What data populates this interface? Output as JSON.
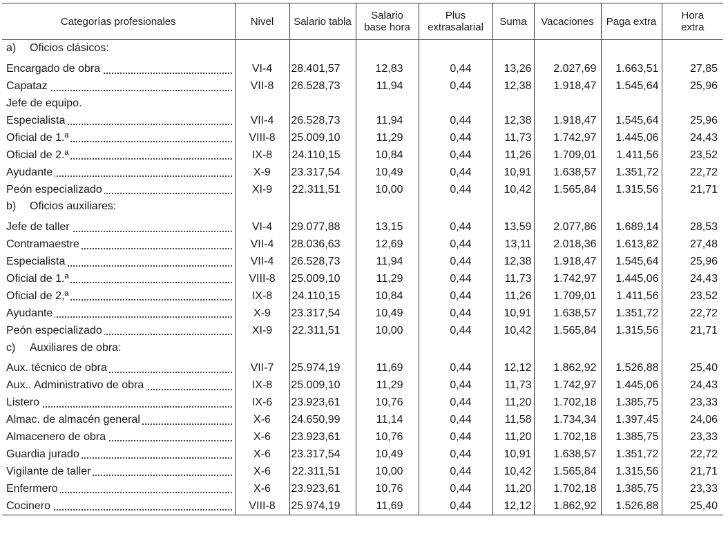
{
  "headers": {
    "categorias": "Categorías profesionales",
    "nivel": "Nivel",
    "salario_tabla": "Salario tabla",
    "salario_base_hora": [
      "Salario",
      "base hora"
    ],
    "plus": [
      "Plus",
      "extrasalarial"
    ],
    "suma": "Suma",
    "vacaciones": "Vacaciones",
    "paga_extra": "Paga extra",
    "hora_extra": [
      "Hora",
      "extra"
    ]
  },
  "sections": [
    {
      "letter": "a)",
      "title": "Oficios clásicos:",
      "rows": [
        {
          "name": "Encargado de obra",
          "dots": true,
          "nivel": "VI-4",
          "salario_tabla": "28.401,57",
          "base_hora": "12,83",
          "plus": "0,44",
          "suma": "13,26",
          "vacaciones": "2.027,69",
          "paga_extra": "1.663,51",
          "hora_extra": "27,85"
        },
        {
          "name": "Capataz",
          "dots": true,
          "nivel": "VII-8",
          "salario_tabla": "26.528,73",
          "base_hora": "11,94",
          "plus": "0,44",
          "suma": "12,38",
          "vacaciones": "1.918,47",
          "paga_extra": "1.545,64",
          "hora_extra": "25,96"
        },
        {
          "name": "Jefe de equipo.",
          "dots": false,
          "nivel": "",
          "salario_tabla": "",
          "base_hora": "",
          "plus": "",
          "suma": "",
          "vacaciones": "",
          "paga_extra": "",
          "hora_extra": ""
        },
        {
          "name": "Especialista",
          "dots": true,
          "nivel": "VII-4",
          "salario_tabla": "26.528,73",
          "base_hora": "11,94",
          "plus": "0,44",
          "suma": "12,38",
          "vacaciones": "1.918,47",
          "paga_extra": "1.545,64",
          "hora_extra": "25,96"
        },
        {
          "name": "Oficial de 1.ª",
          "dots": true,
          "nivel": "VIII-8",
          "salario_tabla": "25.009,10",
          "base_hora": "11,29",
          "plus": "0,44",
          "suma": "11,73",
          "vacaciones": "1.742,97",
          "paga_extra": "1.445,06",
          "hora_extra": "24,43"
        },
        {
          "name": "Oficial de 2.ª",
          "dots": true,
          "nivel": "IX-8",
          "salario_tabla": "24.110,15",
          "base_hora": "10,84",
          "plus": "0,44",
          "suma": "11,26",
          "vacaciones": "1.709,01",
          "paga_extra": "1.411,56",
          "hora_extra": "23,52"
        },
        {
          "name": "Ayudante",
          "dots": true,
          "nivel": "X-9",
          "salario_tabla": "23.317,54",
          "base_hora": "10,49",
          "plus": "0,44",
          "suma": "10,91",
          "vacaciones": "1.638,57",
          "paga_extra": "1.351,72",
          "hora_extra": "22,72"
        },
        {
          "name": "Peón especializado",
          "dots": true,
          "nivel": "XI-9",
          "salario_tabla": "22.311,51",
          "base_hora": "10,00",
          "plus": "0,44",
          "suma": "10,42",
          "vacaciones": "1.565,84",
          "paga_extra": "1.315,56",
          "hora_extra": "21,71"
        }
      ]
    },
    {
      "letter": "b)",
      "title": "Oficios auxiliares:",
      "rows": [
        {
          "name": "Jefe de taller",
          "dots": true,
          "nivel": "VI-4",
          "salario_tabla": "29.077,88",
          "base_hora": "13,15",
          "plus": "0,44",
          "suma": "13,59",
          "vacaciones": "2.077,86",
          "paga_extra": "1.689,14",
          "hora_extra": "28,53"
        },
        {
          "name": "Contramaestre",
          "dots": true,
          "nivel": "VII-4",
          "salario_tabla": "28.036,63",
          "base_hora": "12,69",
          "plus": "0,44",
          "suma": "13,11",
          "vacaciones": "2.018,36",
          "paga_extra": "1.613,82",
          "hora_extra": "27,48"
        },
        {
          "name": "Especialista",
          "dots": true,
          "nivel": "VII-4",
          "salario_tabla": "26.528,73",
          "base_hora": "11,94",
          "plus": "0,44",
          "suma": "12,38",
          "vacaciones": "1.918,47",
          "paga_extra": "1.545,64",
          "hora_extra": "25,96"
        },
        {
          "name": "Oficial de 1.ª",
          "dots": true,
          "nivel": "VIII-8",
          "salario_tabla": "25.009,10",
          "base_hora": "11,29",
          "plus": "0,44",
          "suma": "11,73",
          "vacaciones": "1.742,97",
          "paga_extra": "1.445,06",
          "hora_extra": "24,43"
        },
        {
          "name": "Oficial de 2,ª",
          "dots": true,
          "nivel": "IX-8",
          "salario_tabla": "24.110,15",
          "base_hora": "10,84",
          "plus": "0,44",
          "suma": "11,26",
          "vacaciones": "1.709,01",
          "paga_extra": "1.411,56",
          "hora_extra": "23,52"
        },
        {
          "name": "Ayudante",
          "dots": true,
          "nivel": "X-9",
          "salario_tabla": "23.317,54",
          "base_hora": "10,49",
          "plus": "0,44",
          "suma": "10,91",
          "vacaciones": "1.638,57",
          "paga_extra": "1.351,72",
          "hora_extra": "22,72"
        },
        {
          "name": "Peón especializado",
          "dots": true,
          "nivel": "XI-9",
          "salario_tabla": "22.311,51",
          "base_hora": "10,00",
          "plus": "0,44",
          "suma": "10,42",
          "vacaciones": "1.565,84",
          "paga_extra": "1.315,56",
          "hora_extra": "21,71"
        }
      ]
    },
    {
      "letter": "c)",
      "title": "Auxiliares de obra:",
      "rows": [
        {
          "name": "Aux. técnico de obra",
          "dots": true,
          "nivel": "VII-7",
          "salario_tabla": "25.974,19",
          "base_hora": "11,69",
          "plus": "0,44",
          "suma": "12,12",
          "vacaciones": "1.862,92",
          "paga_extra": "1.526,88",
          "hora_extra": "25,40"
        },
        {
          "name": "Aux.. Administrativo de obra",
          "dots": true,
          "nivel": "IX-8",
          "salario_tabla": "25.009,10",
          "base_hora": "11,29",
          "plus": "0,44",
          "suma": "11,73",
          "vacaciones": "1.742,97",
          "paga_extra": "1.445,06",
          "hora_extra": "24,43"
        },
        {
          "name": "Listero",
          "dots": true,
          "nivel": "IX-6",
          "salario_tabla": "23.923,61",
          "base_hora": "10,76",
          "plus": "0,44",
          "suma": "11,20",
          "vacaciones": "1.702,18",
          "paga_extra": "1.385,75",
          "hora_extra": "23,33"
        },
        {
          "name": "Almac. de almacén general",
          "dots": true,
          "nivel": "X-6",
          "salario_tabla": "24.650,99",
          "base_hora": "11,14",
          "plus": "0,44",
          "suma": "11,58",
          "vacaciones": "1.734,34",
          "paga_extra": "1.397,45",
          "hora_extra": "24,06"
        },
        {
          "name": "Almacenero de obra",
          "dots": true,
          "nivel": "X-6",
          "salario_tabla": "23.923,61",
          "base_hora": "10,76",
          "plus": "0,44",
          "suma": "11,20",
          "vacaciones": "1.702,18",
          "paga_extra": "1.385,75",
          "hora_extra": "23,33"
        },
        {
          "name": "Guardia jurado",
          "dots": true,
          "nivel": "X-6",
          "salario_tabla": "23.317,54",
          "base_hora": "10,49",
          "plus": "0,44",
          "suma": "10,91",
          "vacaciones": "1.638,57",
          "paga_extra": "1.351,72",
          "hora_extra": "22,72"
        },
        {
          "name": "Vigilante de taller",
          "dots": true,
          "nivel": "X-6",
          "salario_tabla": "22.311,51",
          "base_hora": "10,00",
          "plus": "0,44",
          "suma": "10,42",
          "vacaciones": "1.565,84",
          "paga_extra": "1.315,56",
          "hora_extra": "21,71"
        },
        {
          "name": "Enfermero",
          "dots": true,
          "nivel": "X-6",
          "salario_tabla": "23.923,61",
          "base_hora": "10,76",
          "plus": "0,44",
          "suma": "11,20",
          "vacaciones": "1.702,18",
          "paga_extra": "1.385,75",
          "hora_extra": "23,33"
        },
        {
          "name": "Cocinero",
          "dots": true,
          "nivel": "VIII-8",
          "salario_tabla": "25.974,19",
          "base_hora": "11,69",
          "plus": "0,44",
          "suma": "12,12",
          "vacaciones": "1.862,92",
          "paga_extra": "1.526,88",
          "hora_extra": "25,40"
        }
      ]
    }
  ]
}
